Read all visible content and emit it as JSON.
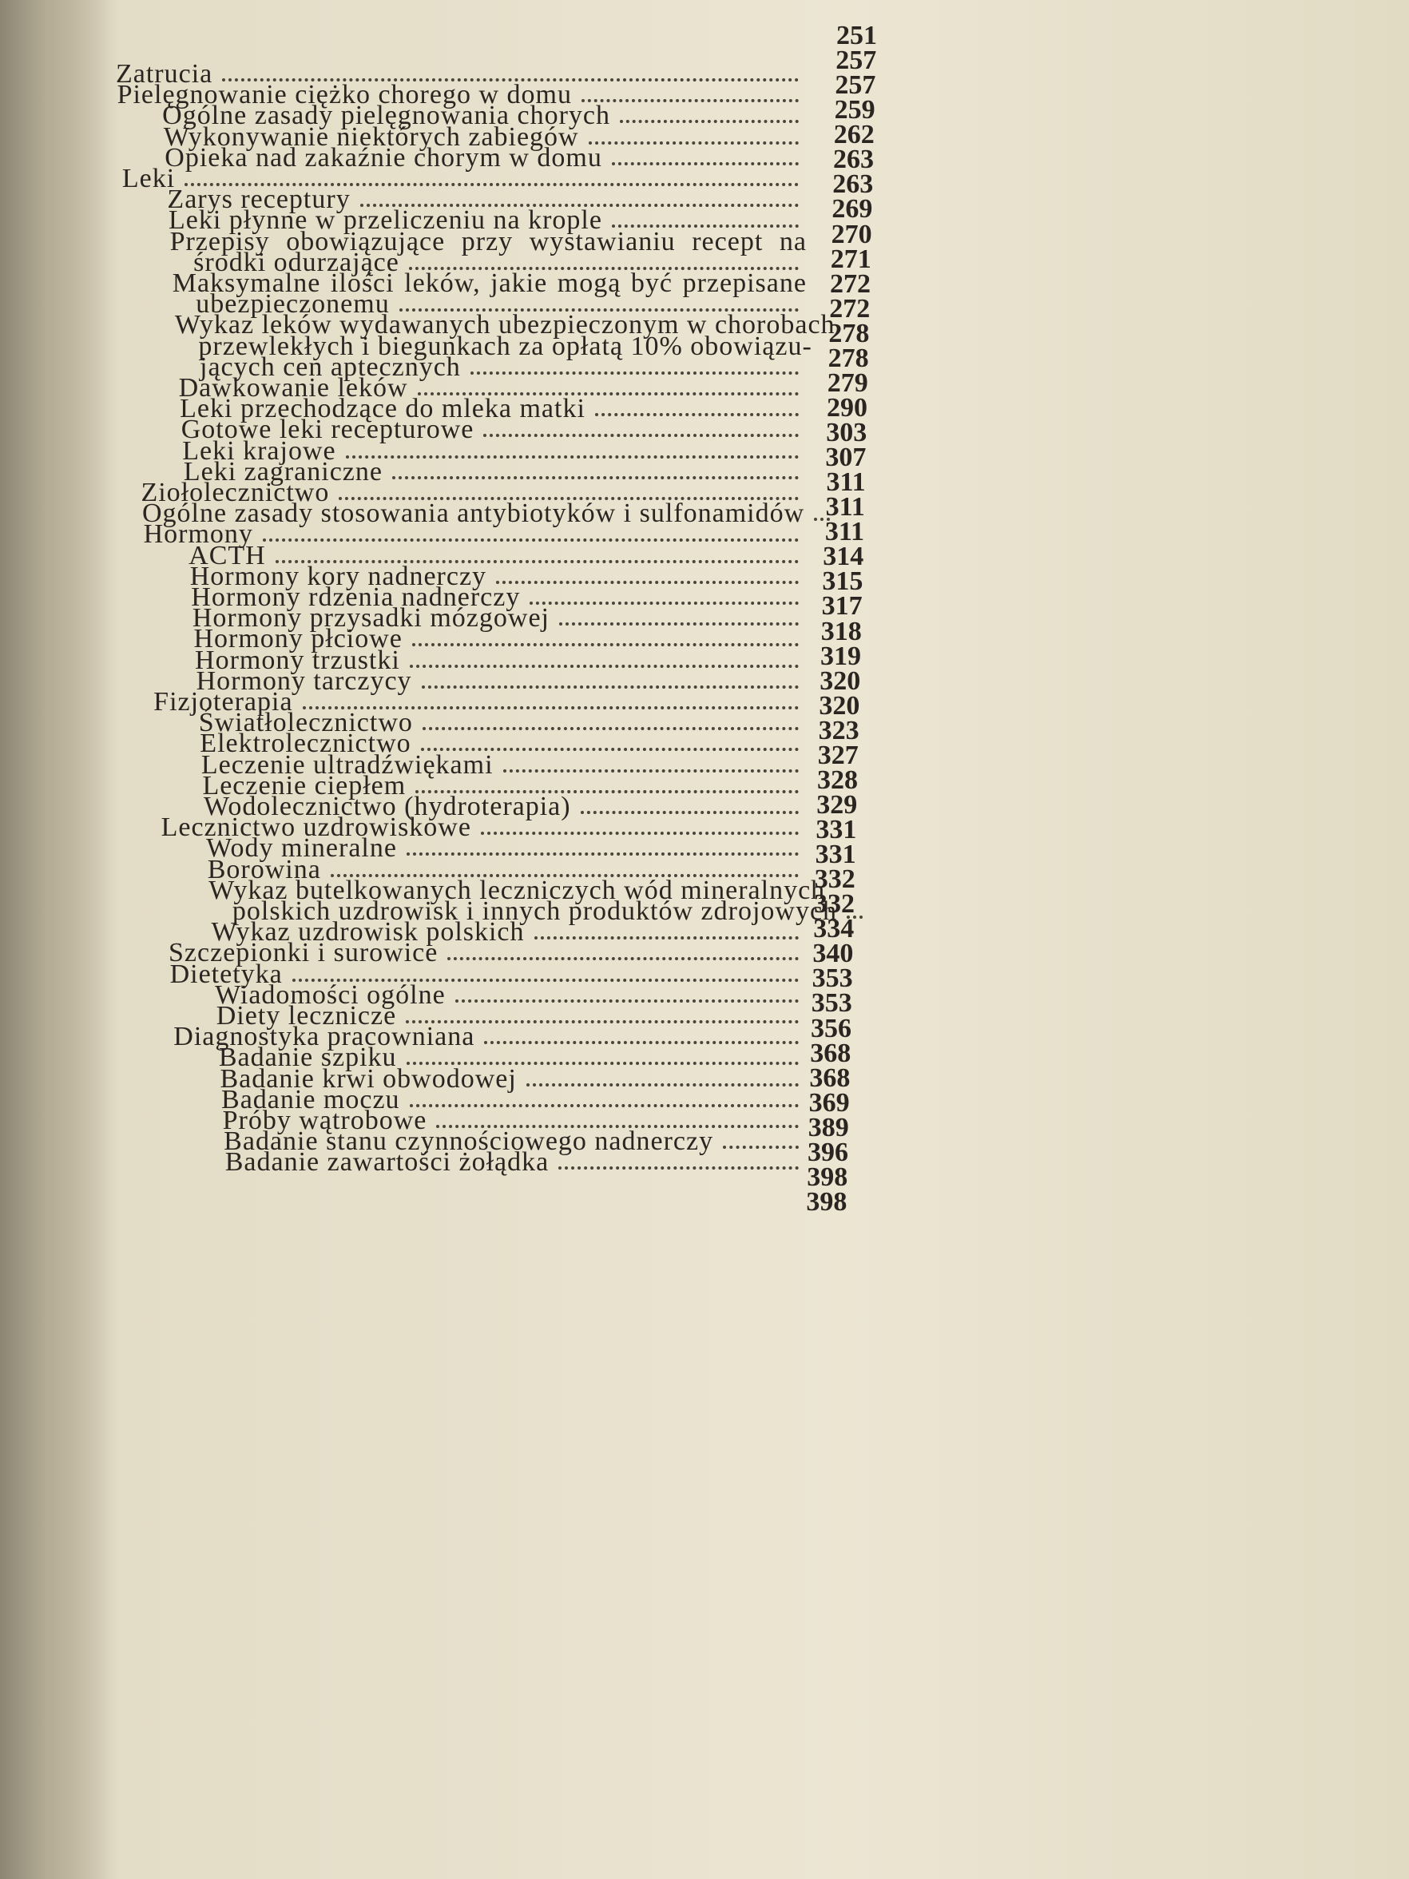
{
  "entries": [
    {
      "level": 0,
      "lines": [
        "Zatrucia"
      ]
    },
    {
      "level": 0,
      "lines": [
        "Pielęgnowanie ciężko chorego w domu"
      ]
    },
    {
      "level": 1,
      "lines": [
        "Ogólne zasady pielęgnowania chorych"
      ]
    },
    {
      "level": 1,
      "lines": [
        "Wykonywanie niektórych zabiegów"
      ]
    },
    {
      "level": 1,
      "lines": [
        "Opieka nad zakaźnie chorym w domu"
      ]
    },
    {
      "level": 0,
      "lines": [
        "Leki"
      ]
    },
    {
      "level": 1,
      "lines": [
        "Zarys receptury"
      ]
    },
    {
      "level": 1,
      "lines": [
        "Leki płynne w przeliczeniu na krople"
      ]
    },
    {
      "level": 1,
      "lines": [
        "Przepisy obowiązujące przy wystawianiu recept na",
        "środki odurzające"
      ]
    },
    {
      "level": 1,
      "lines": [
        "Maksymalne ilości leków, jakie mogą być przepisane",
        "ubezpieczonemu"
      ]
    },
    {
      "level": 1,
      "lines": [
        "Wykaz leków wydawanych ubezpieczonym w chorobach",
        "przewlekłych i biegunkach za opłatą 10% obowiązu-",
        "jących cen aptecznych"
      ]
    },
    {
      "level": 1,
      "lines": [
        "Dawkowanie leków"
      ]
    },
    {
      "level": 1,
      "lines": [
        "Leki przechodzące do mleka matki"
      ]
    },
    {
      "level": 1,
      "lines": [
        "Gotowe leki recepturowe"
      ]
    },
    {
      "level": 1,
      "lines": [
        "Leki krajowe"
      ]
    },
    {
      "level": 1,
      "lines": [
        "Leki zagraniczne"
      ]
    },
    {
      "level": 0,
      "lines": [
        "Ziołolecznictwo"
      ]
    },
    {
      "level": 0,
      "lines": [
        "Ogólne zasady stosowania antybiotyków i sulfonamidów"
      ]
    },
    {
      "level": 0,
      "lines": [
        "Hormony"
      ]
    },
    {
      "level": 1,
      "lines": [
        "ACTH"
      ]
    },
    {
      "level": 1,
      "lines": [
        "Hormony kory nadnerczy"
      ]
    },
    {
      "level": 1,
      "lines": [
        "Hormony rdzenia nadnerczy"
      ]
    },
    {
      "level": 1,
      "lines": [
        "Hormony przysadki mózgowej"
      ]
    },
    {
      "level": 1,
      "lines": [
        "Hormony płciowe"
      ]
    },
    {
      "level": 1,
      "lines": [
        "Hormony trzustki"
      ]
    },
    {
      "level": 1,
      "lines": [
        "Hormony tarczycy"
      ]
    },
    {
      "level": 0,
      "lines": [
        "Fizjoterapia"
      ]
    },
    {
      "level": 1,
      "lines": [
        "Światłolecznictwo"
      ]
    },
    {
      "level": 1,
      "lines": [
        "Elektrolecznictwo"
      ]
    },
    {
      "level": 1,
      "lines": [
        "Leczenie ultradźwiękami"
      ]
    },
    {
      "level": 1,
      "lines": [
        "Leczenie ciepłem"
      ]
    },
    {
      "level": 1,
      "lines": [
        "Wodolecznictwo (hydroterapia)"
      ]
    },
    {
      "level": 0,
      "lines": [
        "Lecznictwo uzdrowiskowe"
      ]
    },
    {
      "level": 1,
      "lines": [
        "Wody mineralne"
      ]
    },
    {
      "level": 1,
      "lines": [
        "Borowina"
      ]
    },
    {
      "level": 1,
      "lines": [
        "Wykaz butelkowanych leczniczych wód mineralnych",
        "polskich uzdrowisk i innych produktów zdrojowych"
      ]
    },
    {
      "level": 1,
      "lines": [
        "Wykaz uzdrowisk polskich"
      ]
    },
    {
      "level": 0,
      "lines": [
        "Szczepionki i surowice"
      ]
    },
    {
      "level": 0,
      "lines": [
        "Dietetyka"
      ]
    },
    {
      "level": 1,
      "lines": [
        "Wiadomości ogólne"
      ]
    },
    {
      "level": 1,
      "lines": [
        "Diety lecznicze"
      ]
    },
    {
      "level": 0,
      "lines": [
        "Diagnostyka pracowniana"
      ]
    },
    {
      "level": 1,
      "lines": [
        "Badanie szpiku"
      ]
    },
    {
      "level": 1,
      "lines": [
        "Badanie krwi obwodowej"
      ]
    },
    {
      "level": 1,
      "lines": [
        "Badanie moczu"
      ]
    },
    {
      "level": 1,
      "lines": [
        "Próby wątrobowe"
      ]
    },
    {
      "level": 1,
      "lines": [
        "Badanie stanu czynnościowego nadnerczy"
      ]
    },
    {
      "level": 1,
      "lines": [
        "Badanie zawartości żołądka"
      ]
    }
  ],
  "page_numbers": [
    "251",
    "257",
    "257",
    "259",
    "262",
    "263",
    "263",
    "269",
    "270",
    "271",
    "272",
    "272",
    "278",
    "278",
    "279",
    "290",
    "303",
    "307",
    "311",
    "311",
    "311",
    "314",
    "315",
    "317",
    "318",
    "319",
    "320",
    "320",
    "323",
    "327",
    "328",
    "329",
    "331",
    "331",
    "332",
    "332",
    "334",
    "340",
    "353",
    "353",
    "356",
    "368",
    "368",
    "369",
    "389",
    "396",
    "398",
    "398"
  ]
}
